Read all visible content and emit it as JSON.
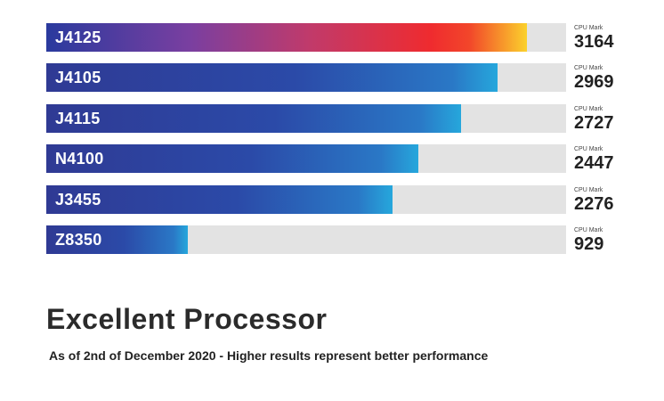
{
  "chart_data": {
    "type": "bar",
    "orientation": "horizontal",
    "categories": [
      "J4125",
      "J4105",
      "J4115",
      "N4100",
      "J3455",
      "Z8350"
    ],
    "values": [
      3164,
      2969,
      2727,
      2447,
      2276,
      929
    ],
    "value_caption": "CPU Mark",
    "xlim": [
      0,
      3420
    ],
    "title": "Excellent Processor",
    "subtitle": "As of 2nd of December 2020 - Higher results represent better performance",
    "highlight_colors": [
      "#2a3a9e",
      "#ef2b2f",
      "#fbd12c"
    ],
    "bar_colors": [
      "#2f3a94",
      "#26a7dc"
    ],
    "track_color": "#e3e3e3",
    "grid": false
  }
}
